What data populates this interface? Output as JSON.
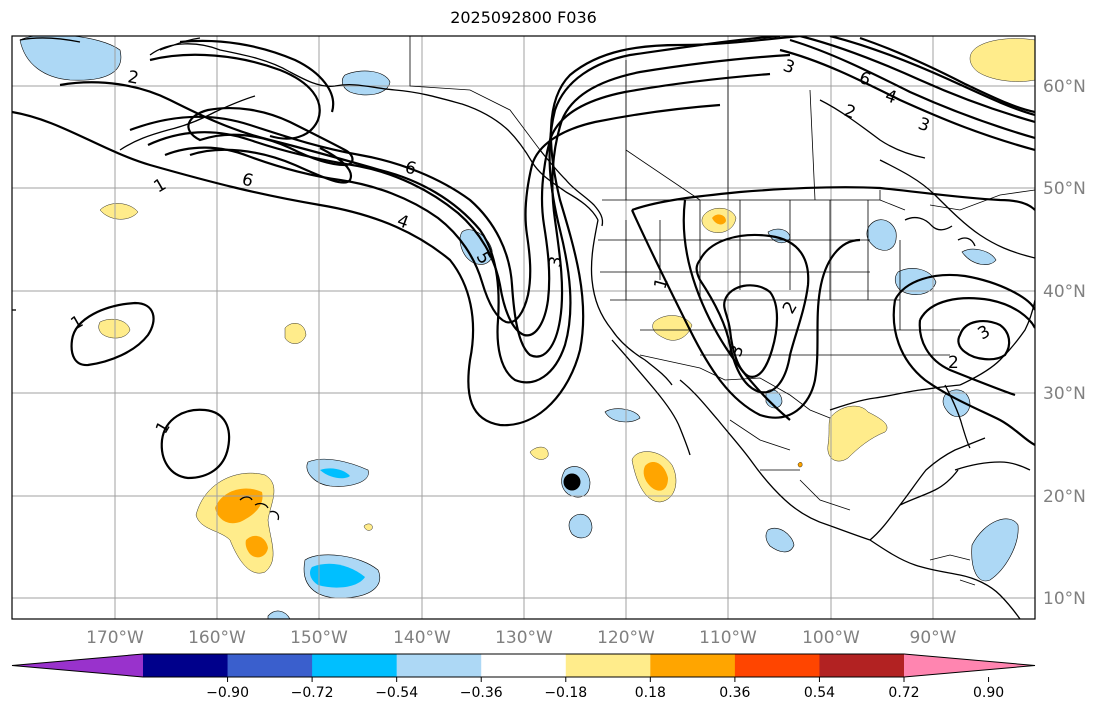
{
  "title": "2025092800 F036",
  "longitude_labels": [
    "170°W",
    "160°W",
    "150°W",
    "140°W",
    "130°W",
    "120°W",
    "110°W",
    "100°W",
    "90°W"
  ],
  "latitude_labels": [
    "60°N",
    "50°N",
    "40°N",
    "30°N",
    "20°N",
    "10°N"
  ],
  "contour_labels": [
    "2",
    "1",
    "6",
    "6",
    "4",
    "5",
    "3",
    "1",
    "2",
    "3",
    "1",
    "1",
    "3",
    "6",
    "4",
    "2",
    "3",
    "2",
    "3"
  ],
  "colorbar": {
    "ticks": [
      "−0.90",
      "−0.72",
      "−0.54",
      "−0.36",
      "−0.18",
      "0.18",
      "0.36",
      "0.54",
      "0.72",
      "0.90"
    ],
    "colors": [
      "#9932cc",
      "#00008b",
      "#3a5fcd",
      "#00bfff",
      "#add8f5",
      "#ffffff",
      "#ffec8b",
      "#ffa500",
      "#ff4500",
      "#b22222",
      "#ff85b0"
    ]
  },
  "colors": {
    "land_outline": "#000000",
    "grid": "#a0a0a0",
    "contour": "#000000",
    "light_blue": "#add8f5",
    "blue": "#00bfff",
    "yellow": "#ffec8b",
    "orange": "#ffa500"
  }
}
